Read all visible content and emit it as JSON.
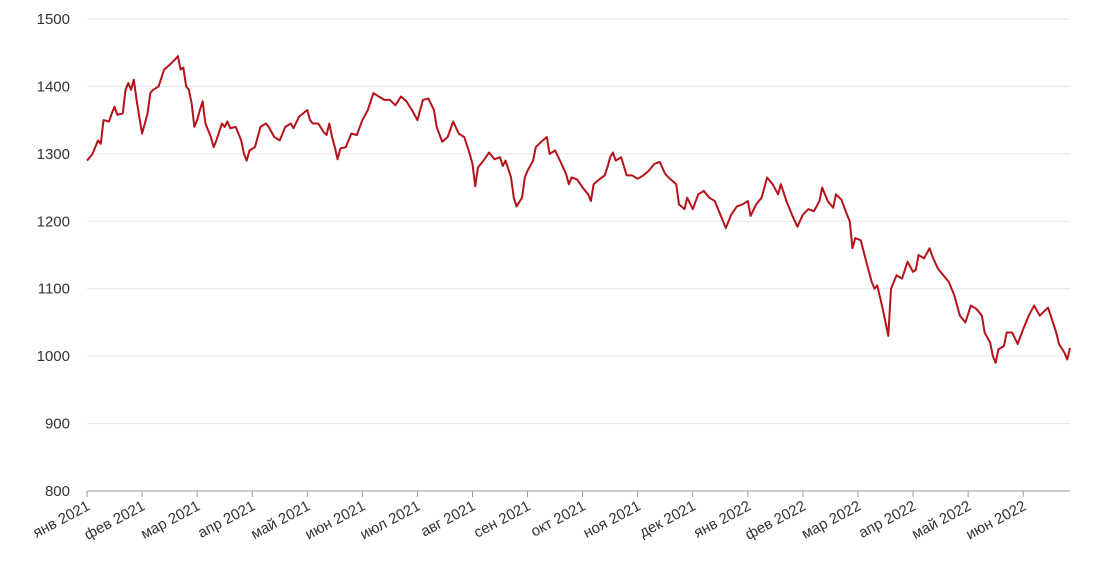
{
  "chart_data": {
    "type": "line",
    "x": [
      0.0,
      0.1,
      0.2,
      0.25,
      0.3,
      0.4,
      0.45,
      0.5,
      0.55,
      0.65,
      0.7,
      0.75,
      0.8,
      0.85,
      0.9,
      0.95,
      1.0,
      1.05,
      1.1,
      1.15,
      1.2,
      1.3,
      1.4,
      1.5,
      1.6,
      1.65,
      1.7,
      1.75,
      1.8,
      1.85,
      1.9,
      1.95,
      2.0,
      2.05,
      2.1,
      2.15,
      2.25,
      2.3,
      2.35,
      2.45,
      2.5,
      2.55,
      2.6,
      2.7,
      2.8,
      2.85,
      2.9,
      2.95,
      3.05,
      3.15,
      3.25,
      3.3,
      3.4,
      3.5,
      3.6,
      3.7,
      3.75,
      3.85,
      4.0,
      4.05,
      4.1,
      4.2,
      4.3,
      4.35,
      4.4,
      4.45,
      4.5,
      4.55,
      4.6,
      4.7,
      4.8,
      4.9,
      5.0,
      5.1,
      5.2,
      5.3,
      5.4,
      5.5,
      5.6,
      5.7,
      5.8,
      5.9,
      6.0,
      6.1,
      6.2,
      6.3,
      6.35,
      6.45,
      6.55,
      6.65,
      6.75,
      6.85,
      6.95,
      7.0,
      7.05,
      7.1,
      7.2,
      7.3,
      7.4,
      7.5,
      7.55,
      7.6,
      7.7,
      7.75,
      7.8,
      7.9,
      7.95,
      8.0,
      8.1,
      8.15,
      8.25,
      8.35,
      8.4,
      8.5,
      8.6,
      8.7,
      8.75,
      8.8,
      8.9,
      9.0,
      9.1,
      9.15,
      9.2,
      9.3,
      9.4,
      9.45,
      9.5,
      9.55,
      9.6,
      9.7,
      9.8,
      9.9,
      10.0,
      10.1,
      10.2,
      10.3,
      10.4,
      10.5,
      10.6,
      10.7,
      10.75,
      10.85,
      10.9,
      11.0,
      11.1,
      11.2,
      11.3,
      11.4,
      11.5,
      11.6,
      11.7,
      11.8,
      11.9,
      12.0,
      12.05,
      12.15,
      12.25,
      12.35,
      12.45,
      12.55,
      12.6,
      12.7,
      12.8,
      12.9,
      13.0,
      13.1,
      13.2,
      13.3,
      13.35,
      13.45,
      13.55,
      13.6,
      13.7,
      13.8,
      13.85,
      13.9,
      13.95,
      14.05,
      14.15,
      14.25,
      14.3,
      14.35,
      14.45,
      14.55,
      14.6,
      14.7,
      14.8,
      14.9,
      15.0,
      15.05,
      15.1,
      15.2,
      15.3,
      15.35,
      15.45,
      15.55,
      15.65,
      15.75,
      15.85,
      15.95,
      16.05,
      16.15,
      16.25,
      16.3,
      16.4,
      16.45,
      16.5,
      16.55,
      16.65,
      16.7,
      16.8,
      16.9,
      17.0,
      17.1,
      17.2,
      17.3,
      17.4,
      17.45,
      17.5,
      17.6,
      17.65,
      17.75,
      17.8,
      17.85
    ],
    "series": [
      {
        "color": "#b5121b",
        "values": [
          1290,
          1300,
          1320,
          1315,
          1350,
          1348,
          1360,
          1370,
          1358,
          1360,
          1395,
          1405,
          1395,
          1410,
          1380,
          1355,
          1330,
          1345,
          1360,
          1390,
          1395,
          1400,
          1425,
          1432,
          1440,
          1445,
          1425,
          1428,
          1400,
          1395,
          1375,
          1340,
          1350,
          1365,
          1378,
          1345,
          1325,
          1310,
          1320,
          1345,
          1340,
          1348,
          1338,
          1340,
          1320,
          1300,
          1290,
          1305,
          1310,
          1340,
          1345,
          1340,
          1325,
          1320,
          1340,
          1345,
          1338,
          1355,
          1365,
          1350,
          1345,
          1345,
          1332,
          1328,
          1345,
          1325,
          1310,
          1292,
          1308,
          1310,
          1330,
          1328,
          1350,
          1365,
          1390,
          1385,
          1380,
          1380,
          1372,
          1385,
          1378,
          1365,
          1350,
          1380,
          1382,
          1365,
          1340,
          1318,
          1325,
          1348,
          1330,
          1325,
          1300,
          1285,
          1252,
          1280,
          1290,
          1302,
          1292,
          1295,
          1282,
          1290,
          1265,
          1235,
          1222,
          1235,
          1265,
          1275,
          1290,
          1310,
          1318,
          1325,
          1300,
          1305,
          1288,
          1270,
          1255,
          1265,
          1262,
          1250,
          1240,
          1230,
          1255,
          1262,
          1268,
          1280,
          1295,
          1302,
          1290,
          1295,
          1268,
          1268,
          1263,
          1268,
          1275,
          1285,
          1288,
          1270,
          1262,
          1255,
          1225,
          1218,
          1235,
          1218,
          1240,
          1245,
          1235,
          1230,
          1210,
          1190,
          1210,
          1222,
          1225,
          1230,
          1208,
          1225,
          1235,
          1265,
          1255,
          1240,
          1255,
          1230,
          1210,
          1192,
          1210,
          1218,
          1215,
          1230,
          1250,
          1230,
          1220,
          1240,
          1232,
          1210,
          1200,
          1160,
          1175,
          1172,
          1140,
          1110,
          1100,
          1105,
          1070,
          1030,
          1100,
          1120,
          1115,
          1140,
          1125,
          1128,
          1150,
          1145,
          1160,
          1148,
          1130,
          1120,
          1110,
          1090,
          1060,
          1050,
          1075,
          1070,
          1060,
          1035,
          1020,
          1000,
          990,
          1010,
          1015,
          1035,
          1035,
          1018,
          1040,
          1060,
          1075,
          1060,
          1068,
          1072,
          1060,
          1035,
          1018,
          1005,
          995,
          1012
        ]
      }
    ],
    "xlim": [
      0,
      17.85
    ],
    "xticks": [
      {
        "value": 0,
        "label": "янв 2021"
      },
      {
        "value": 1,
        "label": "фев 2021"
      },
      {
        "value": 2,
        "label": "мар 2021"
      },
      {
        "value": 3,
        "label": "апр 2021"
      },
      {
        "value": 4,
        "label": "май 2021"
      },
      {
        "value": 5,
        "label": "июн 2021"
      },
      {
        "value": 6,
        "label": "июл 2021"
      },
      {
        "value": 7,
        "label": "авг 2021"
      },
      {
        "value": 8,
        "label": "сен 2021"
      },
      {
        "value": 9,
        "label": "окт 2021"
      },
      {
        "value": 10,
        "label": "ноя 2021"
      },
      {
        "value": 11,
        "label": "дек 2021"
      },
      {
        "value": 12,
        "label": "янв 2022"
      },
      {
        "value": 13,
        "label": "фев 2022"
      },
      {
        "value": 14,
        "label": "мар 2022"
      },
      {
        "value": 15,
        "label": "апр 2022"
      },
      {
        "value": 16,
        "label": "май 2022"
      },
      {
        "value": 17,
        "label": "июн 2022"
      }
    ],
    "ylim": [
      800,
      1500
    ],
    "yticks": [
      800,
      900,
      1000,
      1100,
      1200,
      1300,
      1400,
      1500
    ],
    "grid": true
  }
}
